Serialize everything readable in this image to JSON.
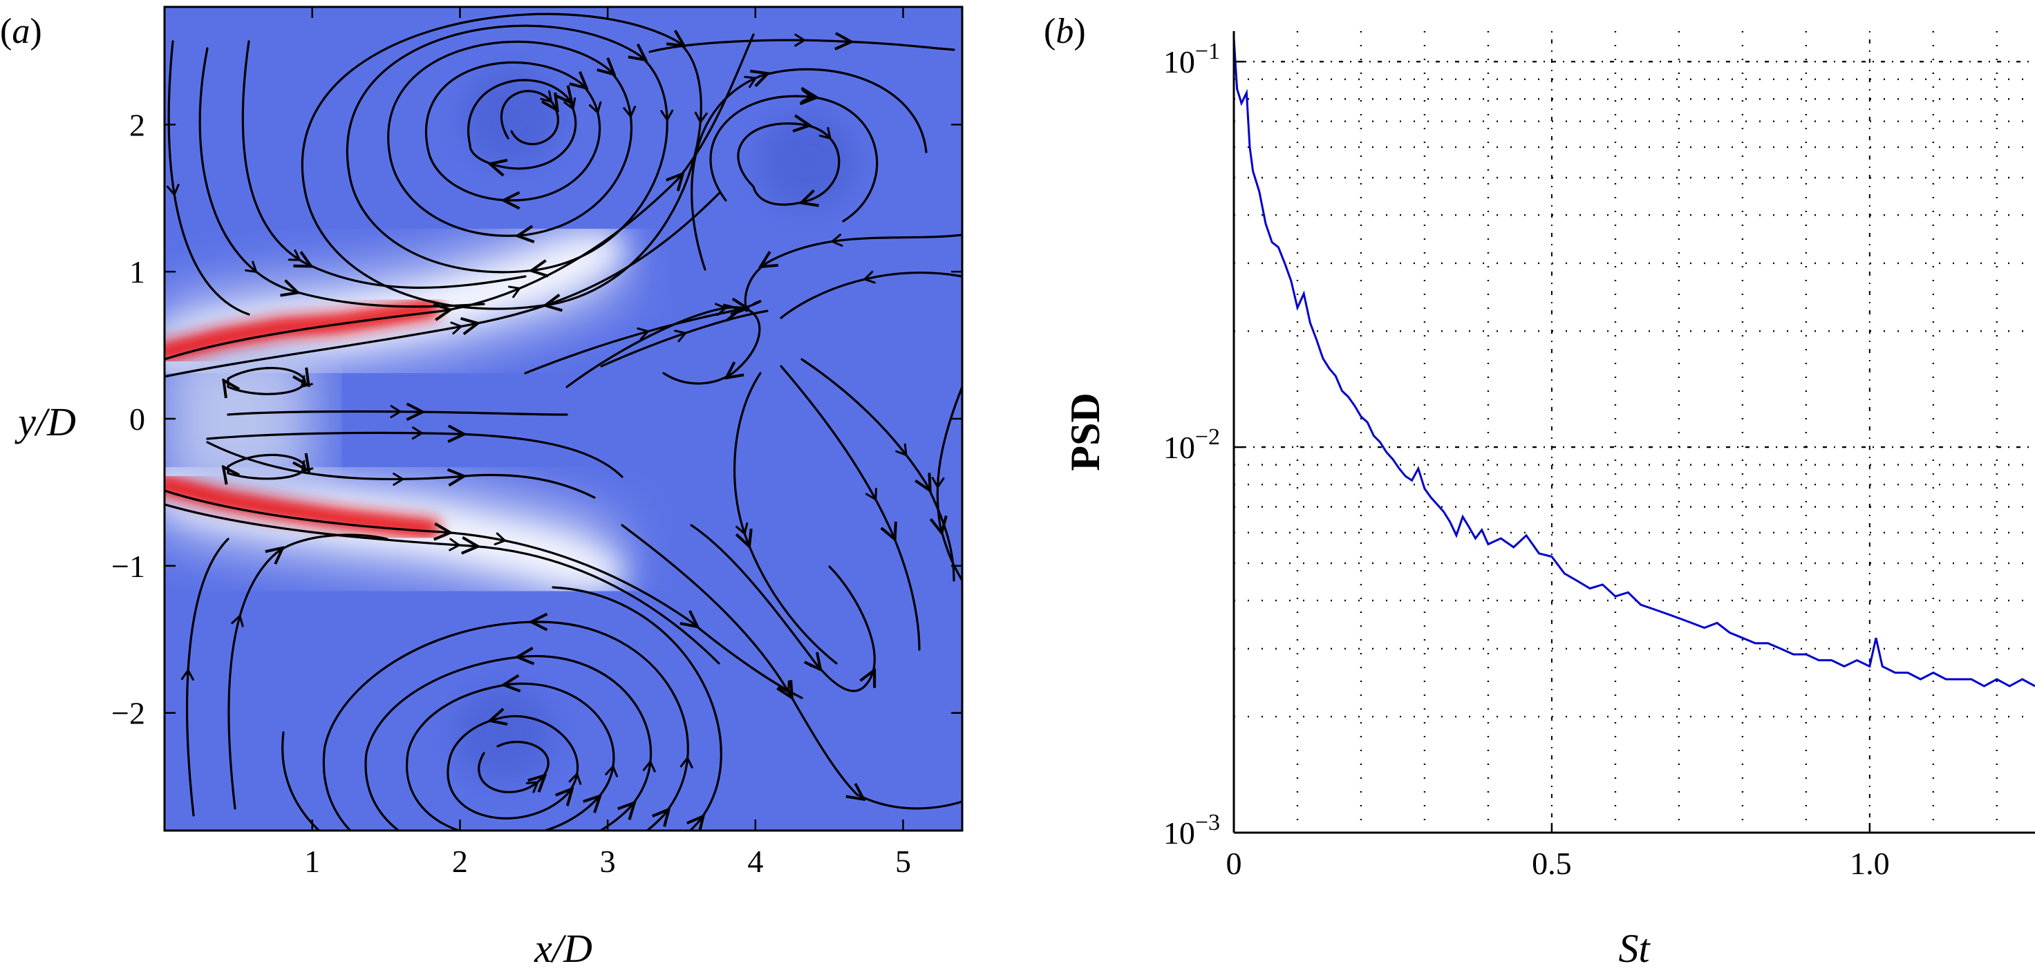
{
  "chart_data": [
    {
      "panel_label": "(a)",
      "type": "heatmap",
      "description_kind": "streamline field over contour map",
      "xlabel": "x/D",
      "ylabel": "y/D",
      "xlim": [
        0,
        5.4
      ],
      "ylim": [
        -2.8,
        2.8
      ],
      "xticks": [
        1,
        2,
        3,
        4,
        5
      ],
      "yticks": [
        -2,
        -1,
        0,
        1,
        2
      ],
      "colors": {
        "low": "#5a71e6",
        "mid": "#ffffff",
        "high": "#e8121f",
        "line": "#000000"
      },
      "shear_layers": [
        {
          "name": "upper",
          "x": [
            0,
            0.4,
            0.8,
            1.2,
            1.8,
            2.5,
            3.0
          ],
          "y": [
            0.45,
            0.55,
            0.62,
            0.65,
            0.75,
            0.95,
            1.15
          ]
        },
        {
          "name": "lower",
          "x": [
            0,
            0.4,
            0.8,
            1.2,
            1.8,
            2.5,
            3.0
          ],
          "y": [
            -0.45,
            -0.55,
            -0.62,
            -0.68,
            -0.75,
            -0.9,
            -1.05
          ]
        }
      ],
      "vortex_centers": [
        {
          "x": 2.35,
          "y": 2.05
        },
        {
          "x": 4.35,
          "y": 1.75
        },
        {
          "x": 2.3,
          "y": -2.15
        },
        {
          "x": 0.75,
          "y": 0.3
        },
        {
          "x": 0.75,
          "y": -0.3
        }
      ]
    },
    {
      "panel_label": "(b)",
      "type": "line",
      "xlabel": "St",
      "ylabel": "PSD",
      "yscale": "log",
      "xlim": [
        0,
        1.26
      ],
      "ylim": [
        0.001,
        0.12
      ],
      "xticks": [
        0,
        0.5,
        1.0
      ],
      "xtick_labels": [
        "0",
        "0.5",
        "1.0"
      ],
      "yticks": [
        0.001,
        0.01,
        0.1
      ],
      "ytick_labels": [
        {
          "base": "10",
          "exp": "−3"
        },
        {
          "base": "10",
          "exp": "−2"
        },
        {
          "base": "10",
          "exp": "−1"
        }
      ],
      "grid": true,
      "series": [
        {
          "name": "PSD",
          "color": "#0000cc",
          "x": [
            0.0,
            0.005,
            0.012,
            0.02,
            0.025,
            0.03,
            0.04,
            0.05,
            0.06,
            0.07,
            0.08,
            0.09,
            0.1,
            0.11,
            0.12,
            0.13,
            0.14,
            0.15,
            0.16,
            0.17,
            0.18,
            0.19,
            0.2,
            0.21,
            0.22,
            0.23,
            0.24,
            0.25,
            0.26,
            0.27,
            0.28,
            0.29,
            0.3,
            0.31,
            0.32,
            0.33,
            0.34,
            0.35,
            0.36,
            0.37,
            0.38,
            0.39,
            0.4,
            0.42,
            0.44,
            0.46,
            0.48,
            0.5,
            0.52,
            0.54,
            0.56,
            0.58,
            0.6,
            0.62,
            0.64,
            0.66,
            0.68,
            0.7,
            0.72,
            0.74,
            0.76,
            0.78,
            0.8,
            0.82,
            0.84,
            0.86,
            0.88,
            0.9,
            0.92,
            0.94,
            0.96,
            0.98,
            1.0,
            1.01,
            1.02,
            1.04,
            1.06,
            1.08,
            1.1,
            1.12,
            1.14,
            1.16,
            1.18,
            1.2,
            1.22,
            1.24,
            1.26
          ],
          "y": [
            0.115,
            0.085,
            0.078,
            0.083,
            0.06,
            0.052,
            0.046,
            0.038,
            0.034,
            0.033,
            0.03,
            0.027,
            0.023,
            0.025,
            0.021,
            0.019,
            0.017,
            0.016,
            0.0153,
            0.014,
            0.0135,
            0.0128,
            0.012,
            0.0116,
            0.0107,
            0.0103,
            0.0097,
            0.0093,
            0.0088,
            0.0084,
            0.0082,
            0.0088,
            0.0078,
            0.0074,
            0.0071,
            0.0068,
            0.0064,
            0.0059,
            0.0066,
            0.0062,
            0.0058,
            0.0061,
            0.0056,
            0.0058,
            0.0055,
            0.0059,
            0.0053,
            0.0052,
            0.0047,
            0.0045,
            0.0043,
            0.0044,
            0.0041,
            0.0042,
            0.0039,
            0.0038,
            0.0037,
            0.0036,
            0.0035,
            0.0034,
            0.0035,
            0.0033,
            0.0032,
            0.0031,
            0.0031,
            0.003,
            0.0029,
            0.0029,
            0.0028,
            0.0028,
            0.0027,
            0.0028,
            0.0027,
            0.0032,
            0.0027,
            0.0026,
            0.0026,
            0.0025,
            0.0026,
            0.0025,
            0.0025,
            0.0025,
            0.0024,
            0.0025,
            0.0024,
            0.0025,
            0.0024
          ]
        }
      ]
    }
  ]
}
